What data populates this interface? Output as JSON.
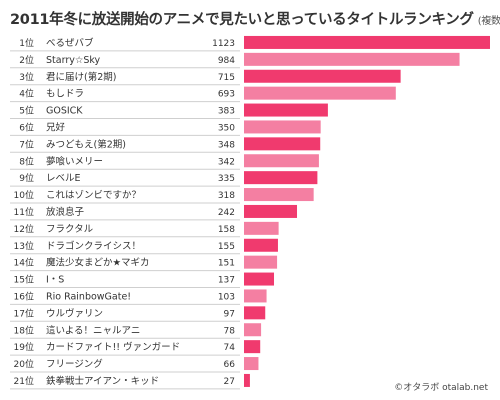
{
  "title": "2011年冬に放送開始のアニメで見たいと思っているタイトルランキング",
  "subtitle": "(複数回答)",
  "credit": "©オタラボ otalab.net",
  "colors": {
    "dark": "#F03A6E",
    "light": "#F47FA2",
    "row_line": "#cfcfcf"
  },
  "chart_data": {
    "type": "bar",
    "orientation": "horizontal",
    "grid": false,
    "ranks": [
      "1位",
      "2位",
      "3位",
      "4位",
      "5位",
      "6位",
      "7位",
      "8位",
      "9位",
      "10位",
      "11位",
      "12位",
      "13位",
      "14位",
      "15位",
      "16位",
      "17位",
      "18位",
      "19位",
      "20位",
      "21位"
    ],
    "categories": [
      "べるぜバブ",
      "Starry☆Sky",
      "君に届け(第2期)",
      "もしドラ",
      "GOSICK",
      "兄好",
      "みつどもえ(第2期)",
      "夢喰いメリー",
      "レベルE",
      "これはゾンビですか？",
      "放浪息子",
      "フラクタル",
      "ドラゴンクライシス！",
      "魔法少女まどか★マギカ",
      "I・S",
      "Rio RainbowGate!",
      "ウルヴァリン",
      "這いよる！ニャルアニ",
      "カードファイト!! ヴァンガード",
      "フリージング",
      "鉄拳戦士アイアン・キッド"
    ],
    "values": [
      1123,
      984,
      715,
      693,
      383,
      350,
      348,
      342,
      335,
      318,
      242,
      158,
      155,
      151,
      137,
      103,
      97,
      78,
      74,
      66,
      27
    ],
    "bar_colors": [
      "dark",
      "light",
      "dark",
      "light",
      "dark",
      "light",
      "dark",
      "light",
      "dark",
      "light",
      "dark",
      "light",
      "dark",
      "light",
      "dark",
      "light",
      "dark",
      "light",
      "dark",
      "light",
      "dark"
    ],
    "xlim": [
      0,
      1123
    ]
  }
}
